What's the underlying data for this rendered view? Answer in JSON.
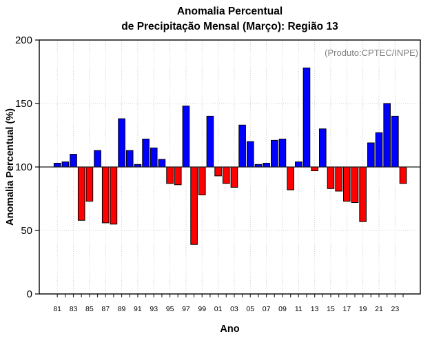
{
  "chart": {
    "title_line1": "Anomalia Percentual",
    "title_line2": "de Precipitação Mensal (Março): Região 13",
    "source_annotation": "(Produto:CPTEC/INPE)",
    "xlabel": "Ano",
    "ylabel": "Anomalia Percentual (%)"
  },
  "chart_data": {
    "type": "bar",
    "title": "Anomalia Percentual de Precipitação Mensal (Março): Região 13",
    "annotation": "(Produto:CPTEC/INPE)",
    "xlabel": "Ano",
    "ylabel": "Anomalia Percentual (%)",
    "ylim": [
      0,
      200
    ],
    "yticks": [
      0,
      50,
      100,
      150,
      200
    ],
    "baseline": 100,
    "grid_y_values": [
      50,
      150
    ],
    "grid": "dotted horizontal lines at 50 and 150, dotted vertical lines at odd years, solid line at baseline 100",
    "legend_position": "none",
    "years": [
      1981,
      1982,
      1983,
      1984,
      1985,
      1986,
      1987,
      1988,
      1989,
      1990,
      1991,
      1992,
      1993,
      1994,
      1995,
      1996,
      1997,
      1998,
      1999,
      2000,
      2001,
      2002,
      2003,
      2004,
      2005,
      2006,
      2007,
      2008,
      2009,
      2010,
      2011,
      2012,
      2013,
      2014,
      2015,
      2016,
      2017,
      2018,
      2019,
      2020,
      2021,
      2022,
      2023,
      2024
    ],
    "x_tick_labels": [
      "81",
      "83",
      "85",
      "87",
      "89",
      "91",
      "93",
      "95",
      "97",
      "99",
      "01",
      "03",
      "05",
      "07",
      "09",
      "11",
      "13",
      "15",
      "17",
      "19",
      "21",
      "23"
    ],
    "values": [
      103,
      104,
      110,
      58,
      73,
      113,
      56,
      55,
      138,
      113,
      102,
      122,
      115,
      106,
      87,
      86,
      148,
      39,
      78,
      140,
      93,
      87,
      84,
      133,
      120,
      102,
      103,
      121,
      122,
      82,
      104,
      178,
      97,
      130,
      83,
      81,
      73,
      72,
      57,
      119,
      127,
      150,
      140,
      87
    ],
    "style": {
      "above_color": "#0000ff",
      "below_color": "#ff0000",
      "grid_color": "#cfcfcf",
      "annotation_color": "#7f7f7f",
      "frame_color": "#000000"
    }
  }
}
